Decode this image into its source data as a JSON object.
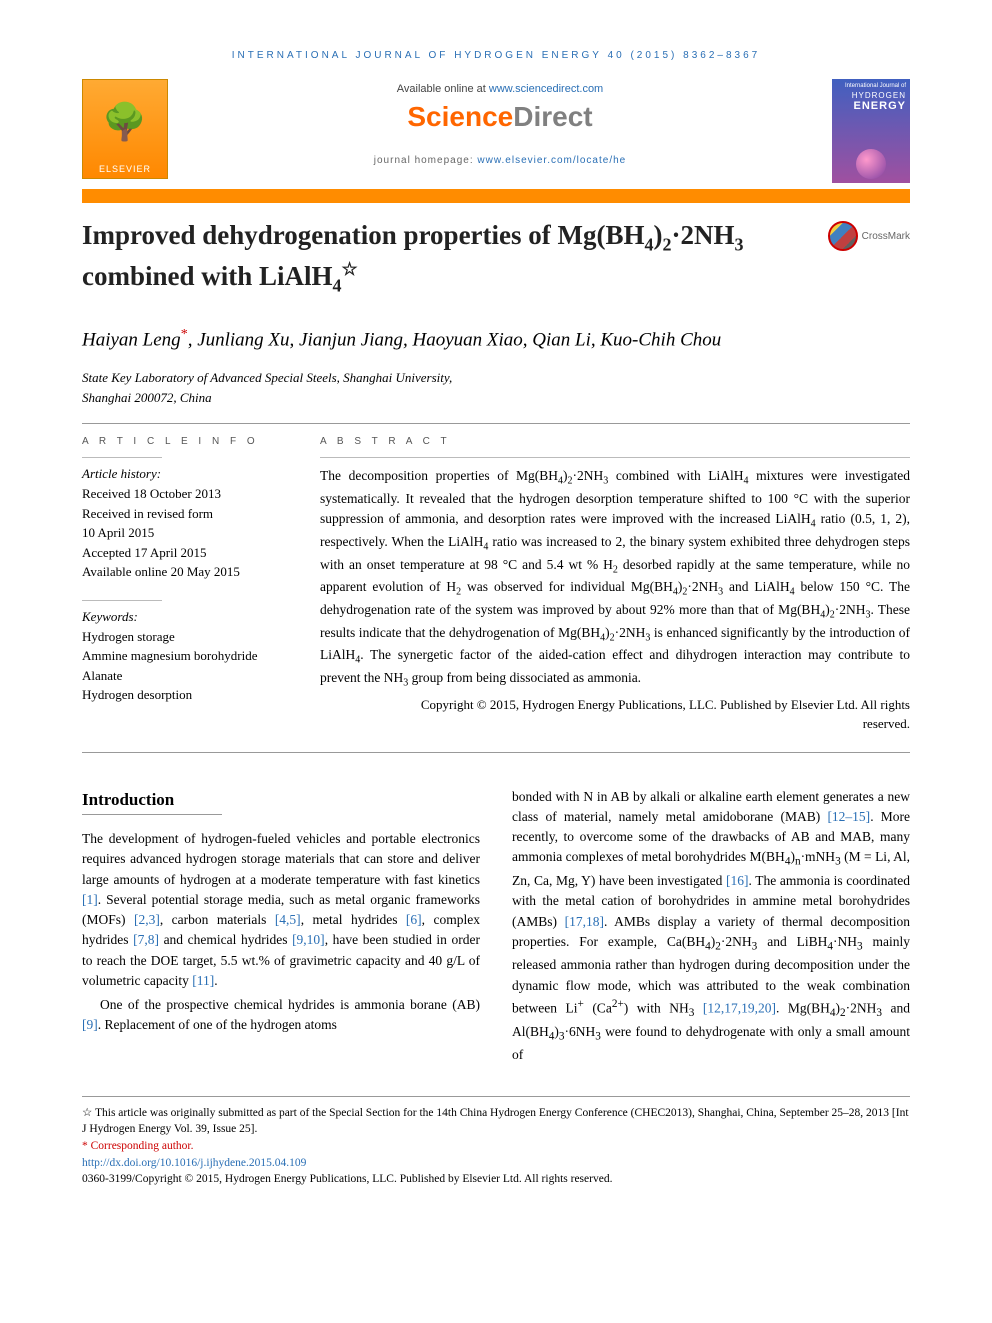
{
  "journal_header": "INTERNATIONAL JOURNAL OF HYDROGEN ENERGY 40 (2015) 8362–8367",
  "header": {
    "elsevier": "ELSEVIER",
    "available_prefix": "Available online at ",
    "available_link": "www.sciencedirect.com",
    "sd_brand_1": "Science",
    "sd_brand_2": "Direct",
    "homepage_prefix": "journal homepage: ",
    "homepage_link": "www.elsevier.com/locate/he",
    "cover_top": "International Journal of",
    "cover_hydrogen": "HYDROGEN",
    "cover_energy": "ENERGY"
  },
  "title_html": "Improved dehydrogenation properties of Mg(BH<sub>4</sub>)<sub>2</sub>·2NH<sub>3</sub> combined with LiAlH<sub>4</sub><span class=\"star\">☆</span>",
  "crossmark": "CrossMark",
  "authors_html": "Haiyan Leng<span class=\"corr\">*</span>, Junliang Xu, Jianjun Jiang, Haoyuan Xiao, Qian Li, Kuo-Chih Chou",
  "affiliation_html": "State Key Laboratory of Advanced Special Steels, Shanghai University,<br>Shanghai 200072, China",
  "info": {
    "heading": "A R T I C L E  I N F O",
    "history_label": "Article history:",
    "history_lines": [
      "Received 18 October 2013",
      "Received in revised form",
      "10 April 2015",
      "Accepted 17 April 2015",
      "Available online 20 May 2015"
    ],
    "keywords_label": "Keywords:",
    "keywords": [
      "Hydrogen storage",
      "Ammine magnesium borohydride",
      "Alanate",
      "Hydrogen desorption"
    ]
  },
  "abstract": {
    "heading": "A B S T R A C T",
    "body_html": "The decomposition properties of Mg(BH<sub>4</sub>)<sub>2</sub>·2NH<sub>3</sub> combined with LiAlH<sub>4</sub> mixtures were investigated systematically. It revealed that the hydrogen desorption temperature shifted to 100 °C with the superior suppression of ammonia, and desorption rates were improved with the increased LiAlH<sub>4</sub> ratio (0.5, 1, 2), respectively. When the LiAlH<sub>4</sub> ratio was increased to 2, the binary system exhibited three dehydrogen steps with an onset temperature at 98 °C and 5.4 wt % H<sub>2</sub> desorbed rapidly at the same temperature, while no apparent evolution of H<sub>2</sub> was observed for individual Mg(BH<sub>4</sub>)<sub>2</sub>·2NH<sub>3</sub> and LiAlH<sub>4</sub> below 150 °C. The dehydrogenation rate of the system was improved by about 92% more than that of Mg(BH<sub>4</sub>)<sub>2</sub>·2NH<sub>3</sub>. These results indicate that the dehydrogenation of Mg(BH<sub>4</sub>)<sub>2</sub>·2NH<sub>3</sub> is enhanced significantly by the introduction of LiAlH<sub>4</sub>. The synergetic factor of the aided-cation effect and dihydrogen interaction may contribute to prevent the NH<sub>3</sub> group from being dissociated as ammonia.",
    "copyright_html": "Copyright © 2015, Hydrogen Energy Publications, LLC. Published by Elsevier Ltd. All rights<br>reserved."
  },
  "body": {
    "section_heading": "Introduction",
    "left_html": "<p>The development of hydrogen-fueled vehicles and portable electronics requires advanced hydrogen storage materials that can store and deliver large amounts of hydrogen at a moderate temperature with fast kinetics <span class=\"ref\">[1]</span>. Several potential storage media, such as metal organic frameworks (MOFs) <span class=\"ref\">[2,3]</span>, carbon materials <span class=\"ref\">[4,5]</span>, metal hydrides <span class=\"ref\">[6]</span>, complex hydrides <span class=\"ref\">[7,8]</span> and chemical hydrides <span class=\"ref\">[9,10]</span>, have been studied in order to reach the DOE target, 5.5 wt.% of gravimetric capacity and 40 g/L of volumetric capacity <span class=\"ref\">[11]</span>.</p><p class=\"indent\">One of the prospective chemical hydrides is ammonia borane (AB) <span class=\"ref\">[9]</span>. Replacement of one of the hydrogen atoms</p>",
    "right_html": "<p>bonded with N in AB by alkali or alkaline earth element generates a new class of material, namely metal amidoborane (MAB) <span class=\"ref\">[12–15]</span>. More recently, to overcome some of the drawbacks of AB and MAB, many ammonia complexes of metal borohydrides M(BH<sub>4</sub>)<sub>n</sub>·mNH<sub>3</sub> (M = Li, Al, Zn, Ca, Mg, Y) have been investigated <span class=\"ref\">[16]</span>. The ammonia is coordinated with the metal cation of borohydrides in ammine metal borohydrides (AMBs) <span class=\"ref\">[17,18]</span>. AMBs display a variety of thermal decomposition properties. For example, Ca(BH<sub>4</sub>)<sub>2</sub>·2NH<sub>3</sub> and LiBH<sub>4</sub>·NH<sub>3</sub> mainly released ammonia rather than hydrogen during decomposition under the dynamic flow mode, which was attributed to the weak combination between Li<sup>+</sup> (Ca<sup>2+</sup>) with NH<sub>3</sub> <span class=\"ref\">[12,17,19,20]</span>. Mg(BH<sub>4</sub>)<sub>2</sub>·2NH<sub>3</sub> and Al(BH<sub>4</sub>)<sub>3</sub>·6NH<sub>3</sub> were found to dehydrogenate with only a small amount of</p>"
  },
  "footnotes": {
    "star_html": "This article was originally submitted as part of the Special Section for the 14th China Hydrogen Energy Conference (CHEC2013), Shanghai, China, September 25–28, 2013 [Int J Hydrogen Energy Vol. 39, Issue 25].",
    "corr": "* Corresponding author.",
    "doi": "http://dx.doi.org/10.1016/j.ijhydene.2015.04.109",
    "issn_line": "0360-3199/Copyright © 2015, Hydrogen Energy Publications, LLC. Published by Elsevier Ltd. All rights reserved."
  },
  "colors": {
    "link": "#2a6fb5",
    "orange_bar": "#ff8c00",
    "sd_orange": "#ff6600",
    "sd_gray": "#808080",
    "corr_red": "#c00"
  }
}
